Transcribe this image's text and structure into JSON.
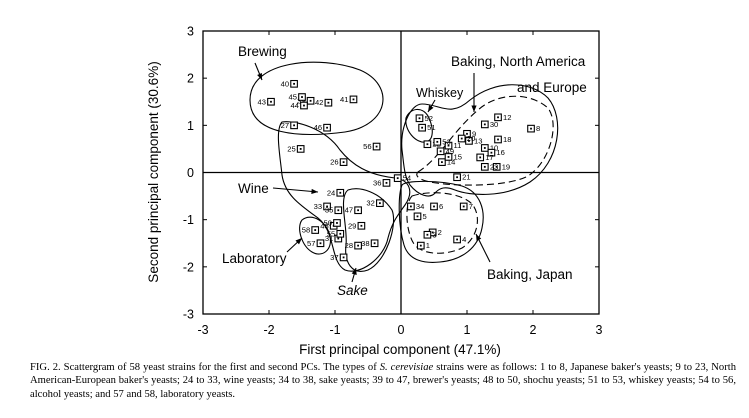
{
  "chart_data": {
    "type": "scatter",
    "title": "",
    "xlabel": "First principal component (47.1%)",
    "ylabel": "Second principal component (30.6%)",
    "xlim": [
      -3,
      3
    ],
    "ylim": [
      -3,
      3
    ],
    "xticks": [
      "-3",
      "-2",
      "-1",
      "0",
      "1",
      "2",
      "3"
    ],
    "yticks": [
      "3",
      "2",
      "1",
      "0",
      "-1",
      "-2",
      "-3"
    ],
    "grid": false,
    "points": [
      {
        "label": "1",
        "x": 0.3,
        "y": -1.55
      },
      {
        "label": "2",
        "x": 0.48,
        "y": -1.27
      },
      {
        "label": "3",
        "x": 0.4,
        "y": -1.32
      },
      {
        "label": "4",
        "x": 0.85,
        "y": -1.42
      },
      {
        "label": "5",
        "x": 0.25,
        "y": -0.93
      },
      {
        "label": "6",
        "x": 0.5,
        "y": -0.72
      },
      {
        "label": "7",
        "x": 0.95,
        "y": -0.72
      },
      {
        "label": "8",
        "x": 1.97,
        "y": 0.93
      },
      {
        "label": "9",
        "x": 1.0,
        "y": 0.82
      },
      {
        "label": "10",
        "x": 1.27,
        "y": 0.52
      },
      {
        "label": "11",
        "x": 0.72,
        "y": 0.57
      },
      {
        "label": "12",
        "x": 1.47,
        "y": 1.17
      },
      {
        "label": "13",
        "x": 1.03,
        "y": 0.67
      },
      {
        "label": "14",
        "x": 0.62,
        "y": 0.22
      },
      {
        "label": "15",
        "x": 0.72,
        "y": 0.33
      },
      {
        "label": "16",
        "x": 1.37,
        "y": 0.42
      },
      {
        "label": "17",
        "x": 1.2,
        "y": 0.32
      },
      {
        "label": "18",
        "x": 1.47,
        "y": 0.7
      },
      {
        "label": "19",
        "x": 1.45,
        "y": 0.12
      },
      {
        "label": "20",
        "x": 0.92,
        "y": 0.72
      },
      {
        "label": "21",
        "x": 0.85,
        "y": -0.1
      },
      {
        "label": "22",
        "x": 0.4,
        "y": 0.6
      },
      {
        "label": "23",
        "x": 1.27,
        "y": 0.12
      },
      {
        "label": "24",
        "x": -0.92,
        "y": -0.43
      },
      {
        "label": "25",
        "x": -1.52,
        "y": 0.5
      },
      {
        "label": "26",
        "x": -0.87,
        "y": 0.22
      },
      {
        "label": "27",
        "x": -1.62,
        "y": 1.0
      },
      {
        "label": "28",
        "x": -0.65,
        "y": -1.55
      },
      {
        "label": "29",
        "x": -0.6,
        "y": -1.13
      },
      {
        "label": "30",
        "x": 1.27,
        "y": 1.02
      },
      {
        "label": "31",
        "x": -0.95,
        "y": -1.4
      },
      {
        "label": "32",
        "x": -0.32,
        "y": -0.65
      },
      {
        "label": "33",
        "x": -1.12,
        "y": -0.72
      },
      {
        "label": "34",
        "x": 0.15,
        "y": -0.72
      },
      {
        "label": "35",
        "x": -0.95,
        "y": -0.8
      },
      {
        "label": "36",
        "x": -0.22,
        "y": -0.22
      },
      {
        "label": "37",
        "x": -0.87,
        "y": -1.8
      },
      {
        "label": "38",
        "x": -0.4,
        "y": -1.5
      },
      {
        "label": "39",
        "x": -1.37,
        "y": 1.52
      },
      {
        "label": "40",
        "x": -1.62,
        "y": 1.88
      },
      {
        "label": "41",
        "x": -0.72,
        "y": 1.55
      },
      {
        "label": "42",
        "x": -1.1,
        "y": 1.48
      },
      {
        "label": "43",
        "x": -1.97,
        "y": 1.5
      },
      {
        "label": "44",
        "x": -1.47,
        "y": 1.42
      },
      {
        "label": "45",
        "x": -1.5,
        "y": 1.6
      },
      {
        "label": "46",
        "x": -1.12,
        "y": 0.95
      },
      {
        "label": "47",
        "x": -0.65,
        "y": -0.8
      },
      {
        "label": "48",
        "x": -1.02,
        "y": -1.13
      },
      {
        "label": "49",
        "x": 0.6,
        "y": 0.45
      },
      {
        "label": "50",
        "x": -0.97,
        "y": -1.07
      },
      {
        "label": "51",
        "x": 0.32,
        "y": 0.95
      },
      {
        "label": "52",
        "x": 0.28,
        "y": 1.15
      },
      {
        "label": "53",
        "x": 0.55,
        "y": 0.65
      },
      {
        "label": "54",
        "x": -0.05,
        "y": -0.12
      },
      {
        "label": "55",
        "x": -0.92,
        "y": -1.3
      },
      {
        "label": "56",
        "x": -0.37,
        "y": 0.55
      },
      {
        "label": "57",
        "x": -1.22,
        "y": -1.5
      },
      {
        "label": "58",
        "x": -1.3,
        "y": -1.22
      }
    ],
    "annotations": [
      "Brewing",
      "Baking, North America",
      "and Europe",
      "Whiskey",
      "Wine",
      "Laboratory",
      "Baking, Japan",
      "Sake"
    ]
  },
  "caption": {
    "label": "FIG. 2.",
    "text_1": "Scattergram of 58 yeast strains for the first and second PCs. The types of",
    "italic": "S. cerevisiae",
    "text_2": "strains were as follows: 1 to 8, Japanese baker's yeasts; 9 to 23, North American-European baker's yeasts; 24 to 33, wine yeasts; 34 to 38, sake yeasts; 39 to 47, brewer's yeasts; 48 to 50, shochu yeasts; 51 to 53, whiskey yeasts; 54 to 56, alcohol yeasts; and 57 and 58, laboratory yeasts."
  }
}
